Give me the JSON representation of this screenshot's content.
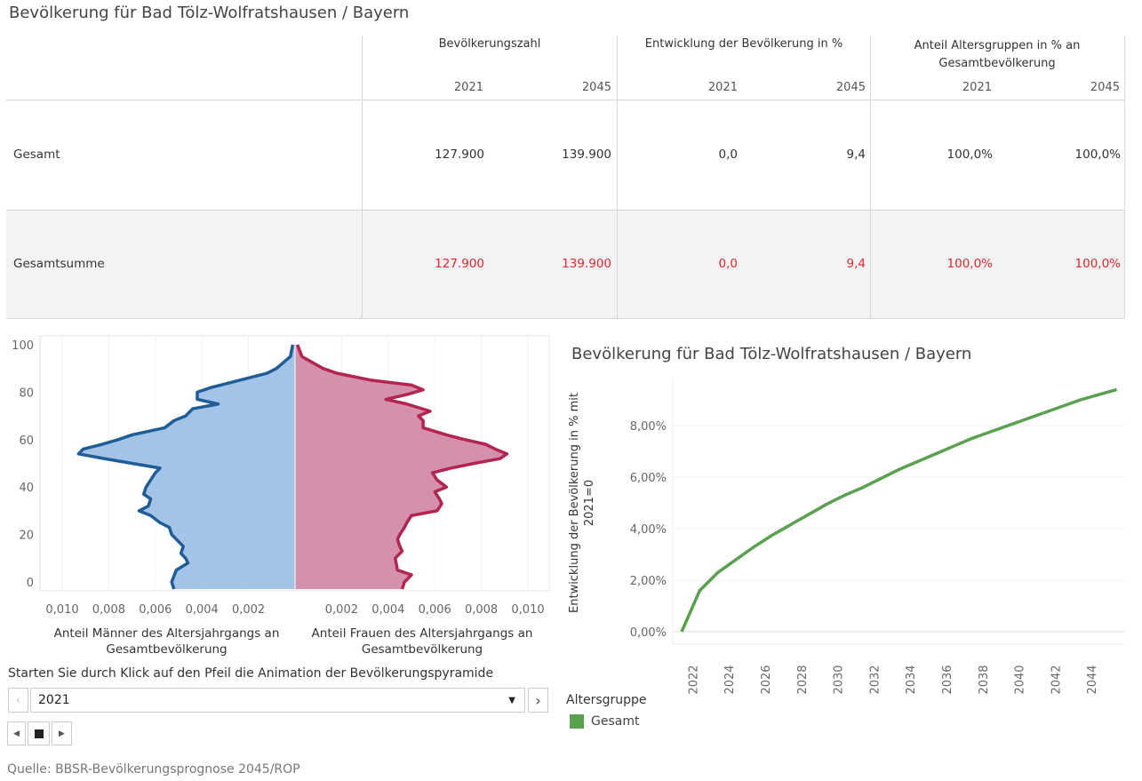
{
  "title": "Bevölkerung für Bad Tölz-Wolfratshausen / Bayern",
  "table": {
    "groups": [
      {
        "label": "Bevölkerungszahl",
        "years": [
          "2021",
          "2045"
        ]
      },
      {
        "label": "Entwicklung der Bevölkerung in %",
        "years": [
          "2021",
          "2045"
        ]
      },
      {
        "label": "Anteil Altersgruppen in % an Gesamtbevölkerung",
        "years": [
          "2021",
          "2045"
        ]
      }
    ],
    "rows": [
      {
        "label": "Gesamt",
        "values": [
          "127.900",
          "139.900",
          "0,0",
          "9,4",
          "100,0%",
          "100,0%"
        ]
      },
      {
        "label": "Gesamtsumme",
        "values": [
          "127.900",
          "139.900",
          "0,0",
          "9,4",
          "100,0%",
          "100,0%"
        ]
      }
    ],
    "total_color": "#e3262d"
  },
  "chart_data": [
    {
      "type": "area",
      "title": "",
      "y_ticks": [
        "0",
        "20",
        "40",
        "60",
        "80",
        "100"
      ],
      "ylim": [
        0,
        100
      ],
      "xlim": [
        -0.01,
        0.01
      ],
      "x_ticks_left": [
        "0,010",
        "0,008",
        "0,006",
        "0,004",
        "0,002"
      ],
      "x_ticks_right": [
        "0,002",
        "0,004",
        "0,006",
        "0,008",
        "0,010"
      ],
      "xlabel_left": "Anteil Männer des Altersjahrgangs an Gesamtbevölkerung",
      "xlabel_right": "Anteil Frauen des Altersjahrgangs an Gesamtbevölkerung",
      "series": [
        {
          "side": "left",
          "color": "#1f5d99",
          "fill": "#a3c4e6",
          "points": [
            [
              -3,
              0.0052
            ],
            [
              0,
              0.0053
            ],
            [
              5,
              0.0051
            ],
            [
              8,
              0.0046
            ],
            [
              10,
              0.0047
            ],
            [
              12,
              0.0049
            ],
            [
              15,
              0.0048
            ],
            [
              18,
              0.0051
            ],
            [
              20,
              0.0053
            ],
            [
              23,
              0.0054
            ],
            [
              25,
              0.0058
            ],
            [
              28,
              0.0062
            ],
            [
              30,
              0.0067
            ],
            [
              32,
              0.0063
            ],
            [
              35,
              0.0062
            ],
            [
              37,
              0.0065
            ],
            [
              40,
              0.0064
            ],
            [
              43,
              0.0062
            ],
            [
              46,
              0.006
            ],
            [
              48,
              0.0058
            ],
            [
              50,
              0.007
            ],
            [
              52,
              0.0082
            ],
            [
              54,
              0.0093
            ],
            [
              56,
              0.0091
            ],
            [
              58,
              0.0083
            ],
            [
              60,
              0.0076
            ],
            [
              62,
              0.007
            ],
            [
              65,
              0.0056
            ],
            [
              68,
              0.0052
            ],
            [
              70,
              0.0047
            ],
            [
              73,
              0.0044
            ],
            [
              75,
              0.0033
            ],
            [
              77,
              0.0042
            ],
            [
              80,
              0.0042
            ],
            [
              82,
              0.0036
            ],
            [
              85,
              0.0024
            ],
            [
              88,
              0.0012
            ],
            [
              90,
              0.0008
            ],
            [
              95,
              0.0002
            ],
            [
              100,
              0.0001
            ]
          ]
        },
        {
          "side": "right",
          "color": "#b4244e",
          "fill": "#d391ad",
          "points": [
            [
              -3,
              0.0046
            ],
            [
              0,
              0.0047
            ],
            [
              3,
              0.005
            ],
            [
              5,
              0.0044
            ],
            [
              10,
              0.0043
            ],
            [
              13,
              0.0046
            ],
            [
              15,
              0.0045
            ],
            [
              18,
              0.0044
            ],
            [
              20,
              0.0045
            ],
            [
              23,
              0.0047
            ],
            [
              25,
              0.0048
            ],
            [
              28,
              0.005
            ],
            [
              30,
              0.0061
            ],
            [
              33,
              0.0063
            ],
            [
              35,
              0.0062
            ],
            [
              38,
              0.006
            ],
            [
              40,
              0.0065
            ],
            [
              43,
              0.0061
            ],
            [
              46,
              0.0059
            ],
            [
              48,
              0.0067
            ],
            [
              50,
              0.0077
            ],
            [
              52,
              0.0088
            ],
            [
              54,
              0.0091
            ],
            [
              56,
              0.0086
            ],
            [
              58,
              0.0082
            ],
            [
              60,
              0.0073
            ],
            [
              62,
              0.0065
            ],
            [
              65,
              0.0055
            ],
            [
              68,
              0.0055
            ],
            [
              70,
              0.0053
            ],
            [
              72,
              0.0058
            ],
            [
              75,
              0.0048
            ],
            [
              77,
              0.0039
            ],
            [
              79,
              0.0048
            ],
            [
              81,
              0.0055
            ],
            [
              83,
              0.005
            ],
            [
              85,
              0.0033
            ],
            [
              88,
              0.0018
            ],
            [
              90,
              0.0012
            ],
            [
              95,
              0.0003
            ],
            [
              100,
              0.0001
            ]
          ]
        }
      ]
    },
    {
      "type": "line",
      "title": "Bevölkerung für Bad Tölz-Wolfratshausen / Bayern",
      "ylabel": "Entwicklung der Bevölkerung in % mit 2021=0",
      "xlabel": "",
      "x": [
        2021,
        2022,
        2023,
        2024,
        2025,
        2026,
        2027,
        2028,
        2029,
        2030,
        2031,
        2032,
        2033,
        2034,
        2035,
        2036,
        2037,
        2038,
        2039,
        2040,
        2041,
        2042,
        2043,
        2044,
        2045
      ],
      "series": [
        {
          "name": "Gesamt",
          "color": "#59a14f",
          "values": [
            0,
            1.6,
            2.3,
            2.8,
            3.3,
            3.75,
            4.15,
            4.55,
            4.95,
            5.3,
            5.6,
            5.95,
            6.3,
            6.6,
            6.9,
            7.2,
            7.5,
            7.75,
            8.0,
            8.25,
            8.5,
            8.75,
            9.0,
            9.2,
            9.4
          ]
        }
      ],
      "ylim": [
        0,
        9.4
      ],
      "y_ticks": [
        "0,00%",
        "2,00%",
        "4,00%",
        "6,00%",
        "8,00%"
      ],
      "x_ticks": [
        "2022",
        "2024",
        "2026",
        "2028",
        "2030",
        "2032",
        "2034",
        "2036",
        "2038",
        "2040",
        "2042",
        "2044"
      ],
      "grid": true,
      "legend": {
        "title": "Altersgruppe",
        "placement": "bottom-left"
      }
    }
  ],
  "animation": {
    "instruction": "Starten Sie durch Klick auf den Pfeil die Animation der Bevölkerungspyramide",
    "selected_year": "2021"
  },
  "source": "Quelle: BBSR-Bevölkerungsprognose 2045/ROP"
}
